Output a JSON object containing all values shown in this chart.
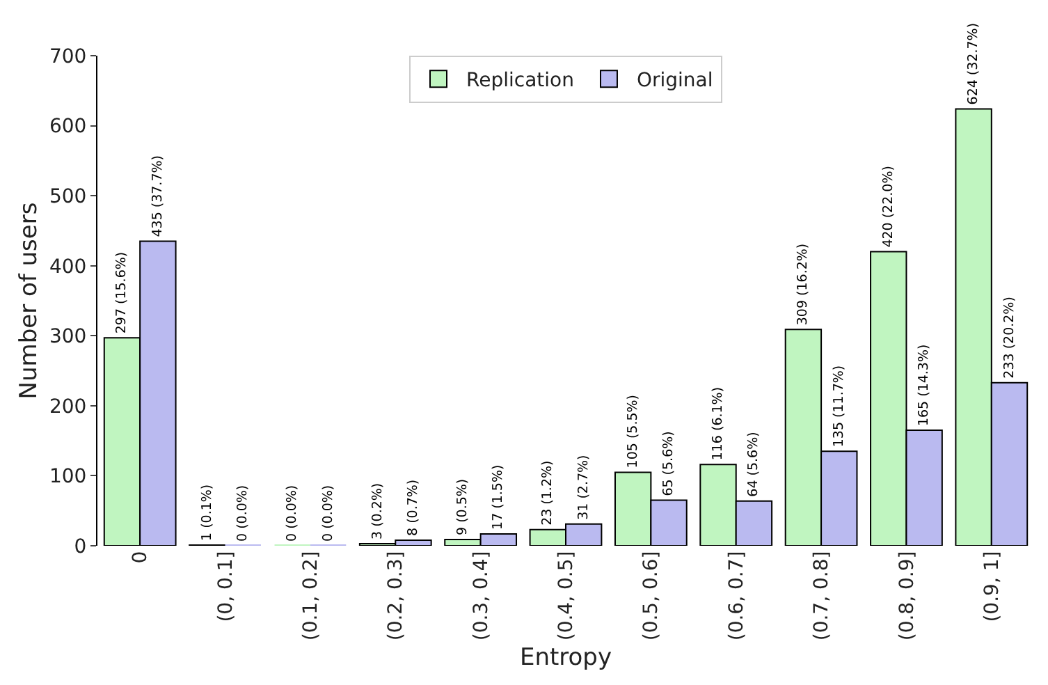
{
  "chart_data": {
    "type": "bar",
    "xlabel": "Entropy",
    "ylabel": "Number of users",
    "categories": [
      "0",
      "(0, 0.1]",
      "(0.1, 0.2]",
      "(0.2, 0.3]",
      "(0.3, 0.4]",
      "(0.4, 0.5]",
      "(0.5, 0.6]",
      "(0.6, 0.7]",
      "(0.7, 0.8]",
      "(0.8, 0.9]",
      "(0.9, 1]"
    ],
    "series": [
      {
        "name": "Replication",
        "color": "#c0f5c0",
        "values": [
          297,
          1,
          0,
          3,
          9,
          23,
          105,
          116,
          309,
          420,
          624
        ],
        "value_labels": [
          "297 (15.6%)",
          "1 (0.1%)",
          "0 (0.0%)",
          "3 (0.2%)",
          "9 (0.5%)",
          "23 (1.2%)",
          "105 (5.5%)",
          "116 (6.1%)",
          "309 (16.2%)",
          "420 (22.0%)",
          "624 (32.7%)"
        ]
      },
      {
        "name": "Original",
        "color": "#babaf0",
        "values": [
          435,
          0,
          0,
          8,
          17,
          31,
          65,
          64,
          135,
          165,
          233
        ],
        "value_labels": [
          "435 (37.7%)",
          "0 (0.0%)",
          "0 (0.0%)",
          "8 (0.7%)",
          "17 (1.5%)",
          "31 (2.7%)",
          "65 (5.6%)",
          "64 (5.6%)",
          "135 (11.7%)",
          "165 (14.3%)",
          "233 (20.2%)"
        ]
      }
    ],
    "ylim": [
      0,
      700
    ],
    "yticks": [
      0,
      100,
      200,
      300,
      400,
      500,
      600,
      700
    ],
    "grid": false,
    "legend": "top"
  }
}
